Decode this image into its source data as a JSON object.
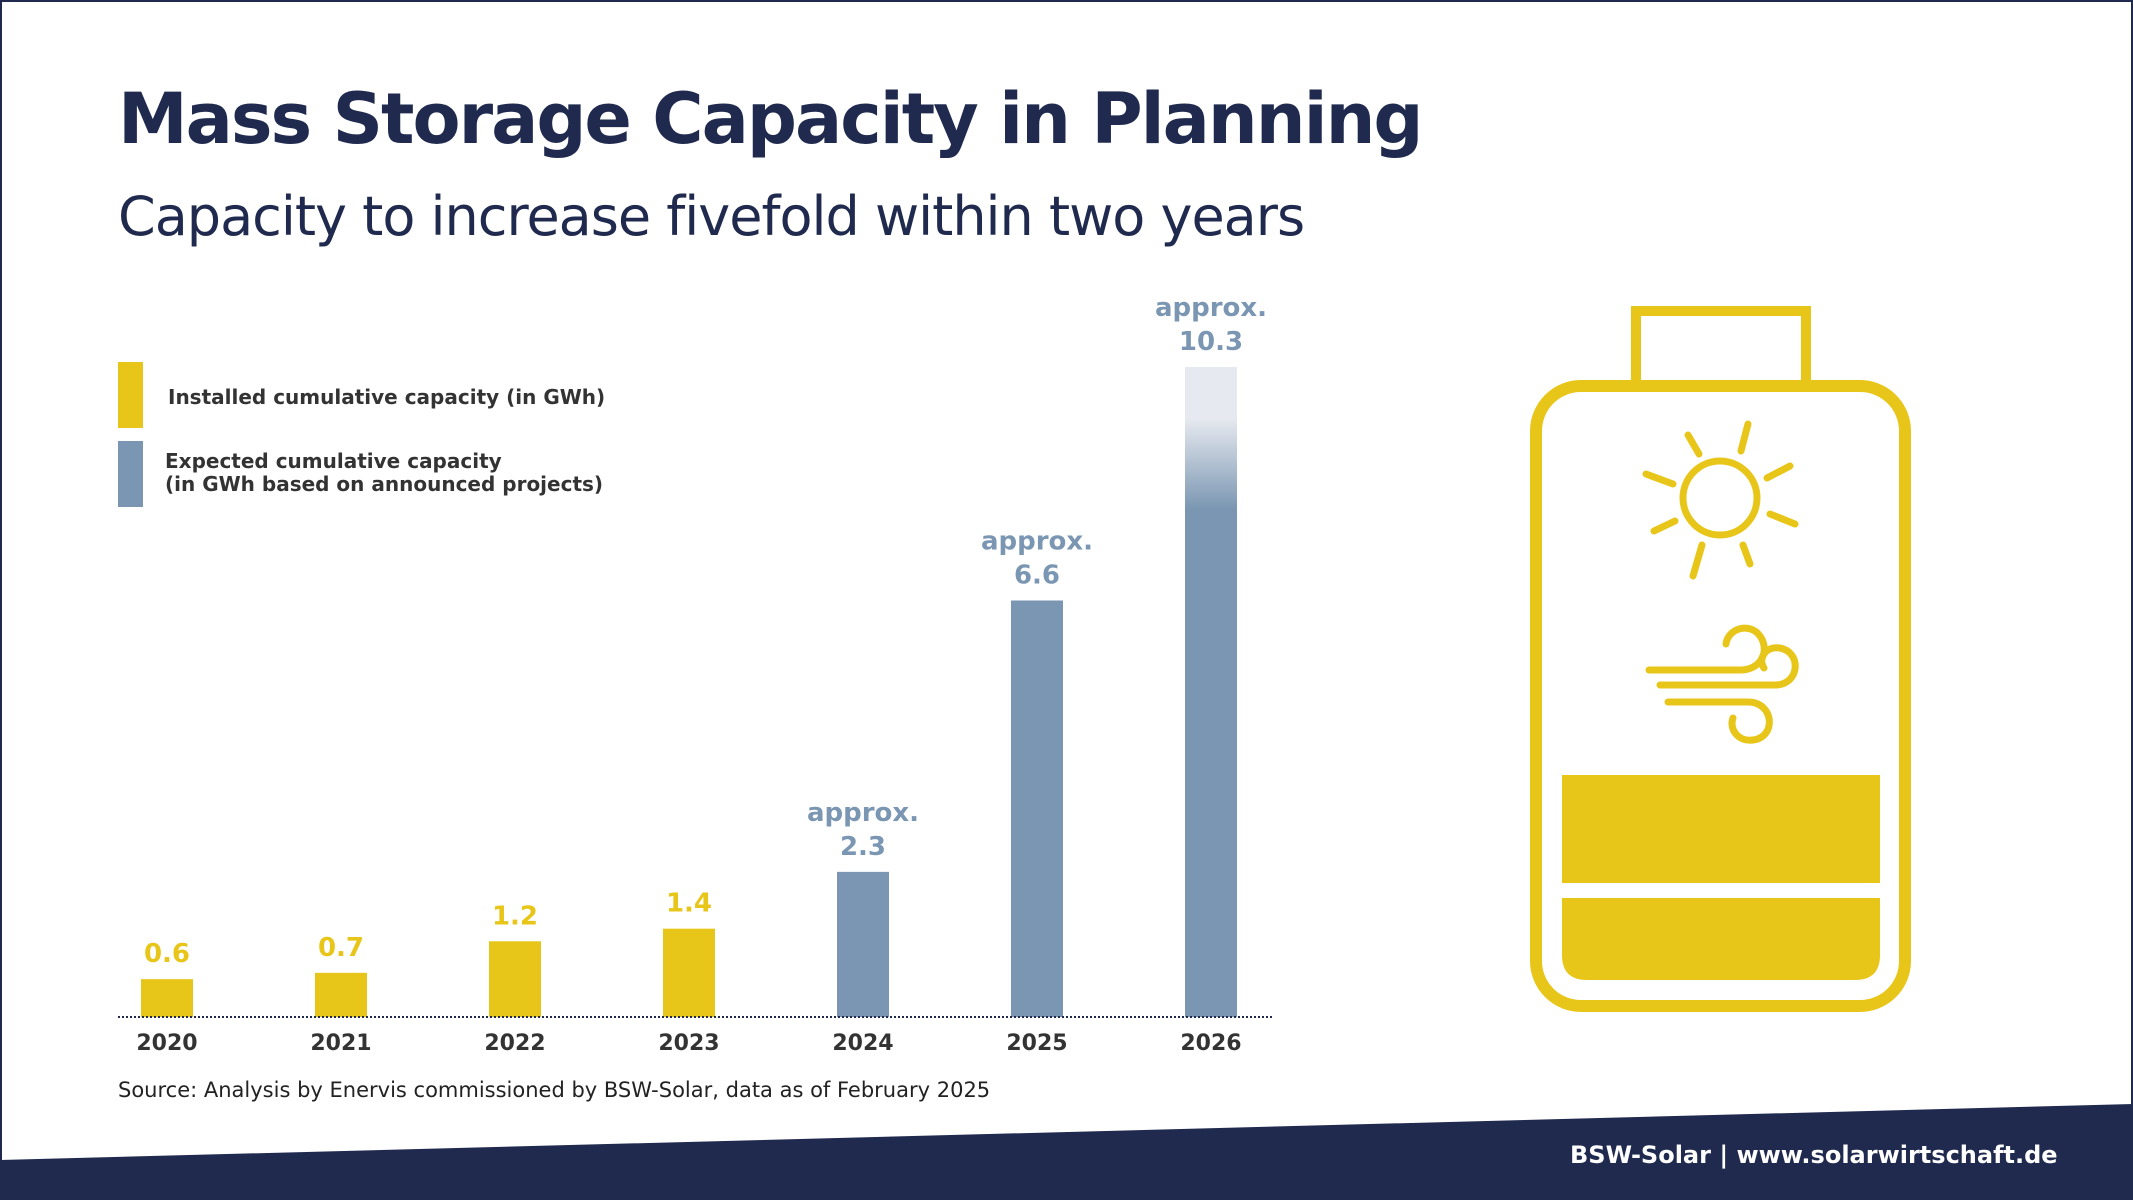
{
  "header": {
    "title": "Mass Storage Capacity in Planning",
    "subtitle": "Capacity to increase fivefold within two years"
  },
  "legend": {
    "installed": "Installed cumulative capacity (in GWh)",
    "expected_line1": "Expected cumulative capacity",
    "expected_line2": "(in GWh based on announced projects)"
  },
  "chart_data": {
    "type": "bar",
    "categories": [
      "2020",
      "2021",
      "2022",
      "2023",
      "2024",
      "2025",
      "2026"
    ],
    "values": [
      0.6,
      0.7,
      1.2,
      1.4,
      2.3,
      6.6,
      10.3
    ],
    "value_labels": [
      "0.6",
      "0.7",
      "1.2",
      "1.4",
      "2.3",
      "6.6",
      "10.3"
    ],
    "value_prefix": [
      "",
      "",
      "",
      "",
      "approx.",
      "approx.",
      "approx."
    ],
    "kind": [
      "installed",
      "installed",
      "installed",
      "installed",
      "expected",
      "expected",
      "expected"
    ],
    "title": "",
    "xlabel": "",
    "ylabel": "",
    "ylim": [
      0,
      10.3
    ],
    "grid": false,
    "legend_position": "top-left",
    "colors": {
      "installed": "#e8c619",
      "expected": "#7a96b2",
      "fade": "#e6e9ef"
    }
  },
  "icon": {
    "name": "battery-solar-wind-icon",
    "color": "#e8c619"
  },
  "colors": {
    "navy": "#1f2a4e",
    "yellow": "#e8c619",
    "steel": "#7a96b2"
  },
  "source": "Source: Analysis by Enervis commissioned by BSW-Solar, data as of February 2025",
  "footer": "BSW-Solar | www.solarwirtschaft.de"
}
